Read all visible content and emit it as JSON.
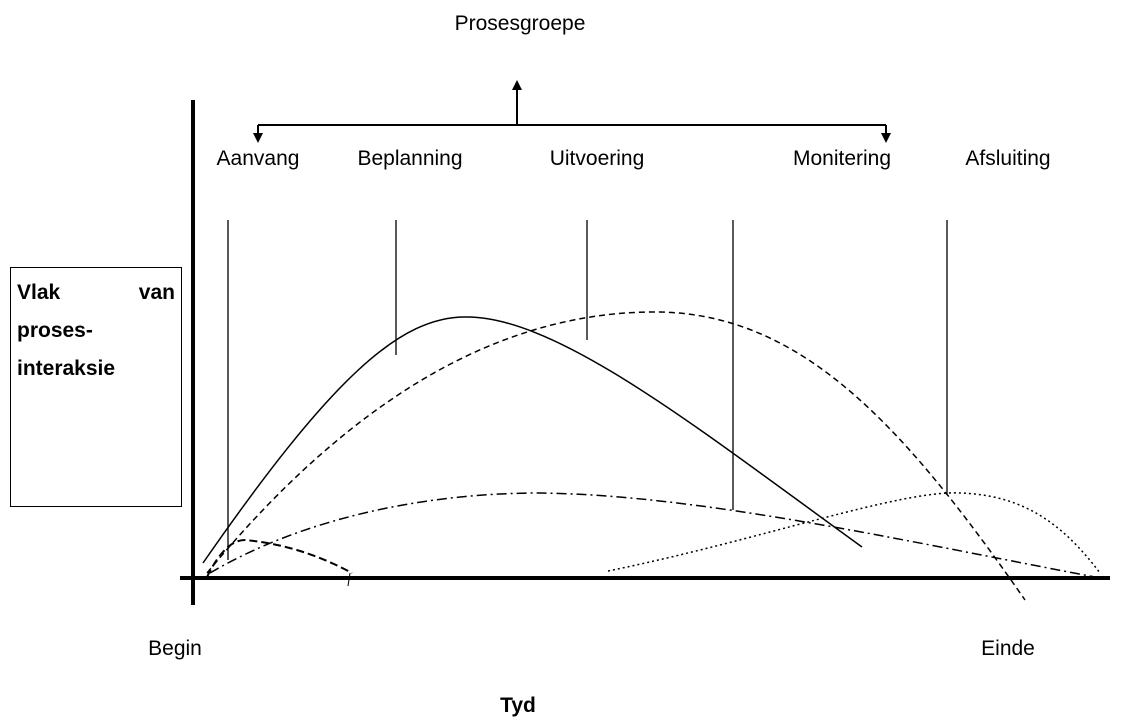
{
  "title": "Prosesgroepe",
  "groups": [
    "Aanvang",
    "Beplanning",
    "Uitvoering",
    "Monitering",
    "Afsluiting"
  ],
  "box_label": "Vlak van proses-interaksie",
  "x_start": "Begin",
  "x_end": "Einde",
  "x_axis_label": "Tyd"
}
